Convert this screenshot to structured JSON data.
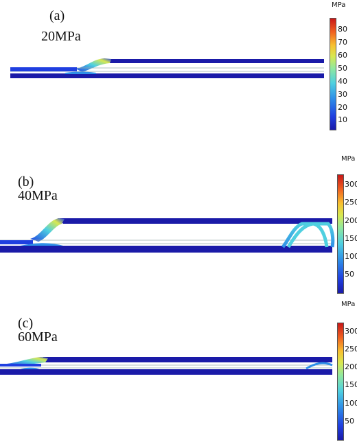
{
  "panels": [
    {
      "label": "(a)",
      "pressure": "20MPa",
      "unit": "MPa",
      "ticks": [
        "80",
        "70",
        "60",
        "50",
        "40",
        "30",
        "20",
        "10"
      ]
    },
    {
      "label": "(b)",
      "pressure": "40MPa",
      "unit": "MPa",
      "ticks": [
        "300",
        "250",
        "200",
        "150",
        "100",
        "50"
      ]
    },
    {
      "label": "(c)",
      "pressure": "60MPa",
      "unit": "MPa",
      "ticks": [
        "300",
        "250",
        "200",
        "150",
        "100",
        "50"
      ]
    }
  ],
  "colormap": [
    "#1a1aa8",
    "#1f3fe0",
    "#2f8fe8",
    "#4fd0e0",
    "#8fe8a0",
    "#d8e850",
    "#f8c030",
    "#f06020",
    "#c81818"
  ]
}
